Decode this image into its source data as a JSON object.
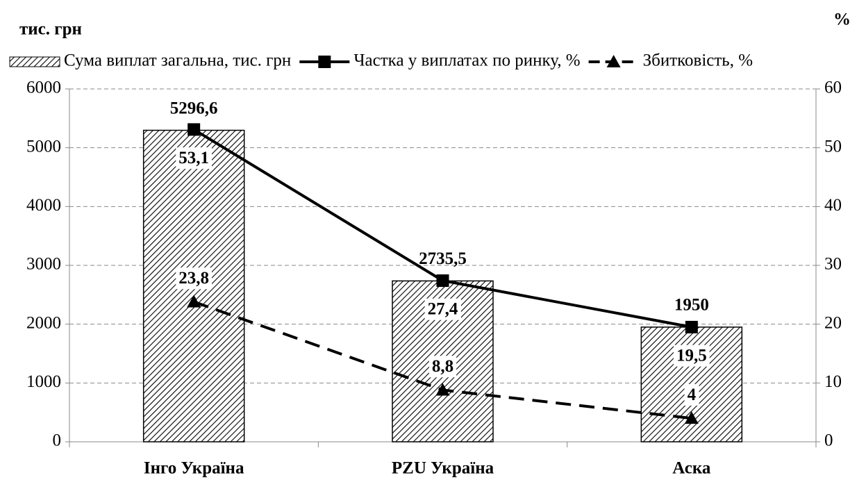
{
  "chart_data": {
    "type": "bar",
    "ylabel": "тис. грн",
    "y2label": "%",
    "categories": [
      "Інго Україна",
      "PZU Україна",
      "Аска"
    ],
    "series": [
      {
        "name": "Сума виплат загальна, тис.  грн",
        "type": "bar",
        "axis": "y",
        "color": "#000000",
        "hatch": true,
        "values": [
          5296.6,
          2735.5,
          1950
        ],
        "value_labels": [
          "5296,6",
          "2735,5",
          "1950"
        ]
      },
      {
        "name": "Частка у виплатах по ринку, %",
        "type": "line",
        "axis": "y2",
        "color": "#000000",
        "linestyle": "solid",
        "marker": "square",
        "values": [
          53.1,
          27.4,
          19.5
        ],
        "value_labels": [
          "53,1",
          "27,4",
          "19,5"
        ]
      },
      {
        "name": "Збитковість, %",
        "type": "line",
        "axis": "y2",
        "color": "#000000",
        "linestyle": "dashed",
        "marker": "triangle",
        "values": [
          23.8,
          8.8,
          4
        ],
        "value_labels": [
          "23,8",
          "8,8",
          "4"
        ]
      }
    ],
    "ylim": [
      0,
      6000
    ],
    "yticks": [
      0,
      1000,
      2000,
      3000,
      4000,
      5000,
      6000
    ],
    "y2lim": [
      0,
      60
    ],
    "y2ticks": [
      0,
      10,
      20,
      30,
      40,
      50,
      60
    ],
    "grid": true,
    "legend": "top"
  }
}
